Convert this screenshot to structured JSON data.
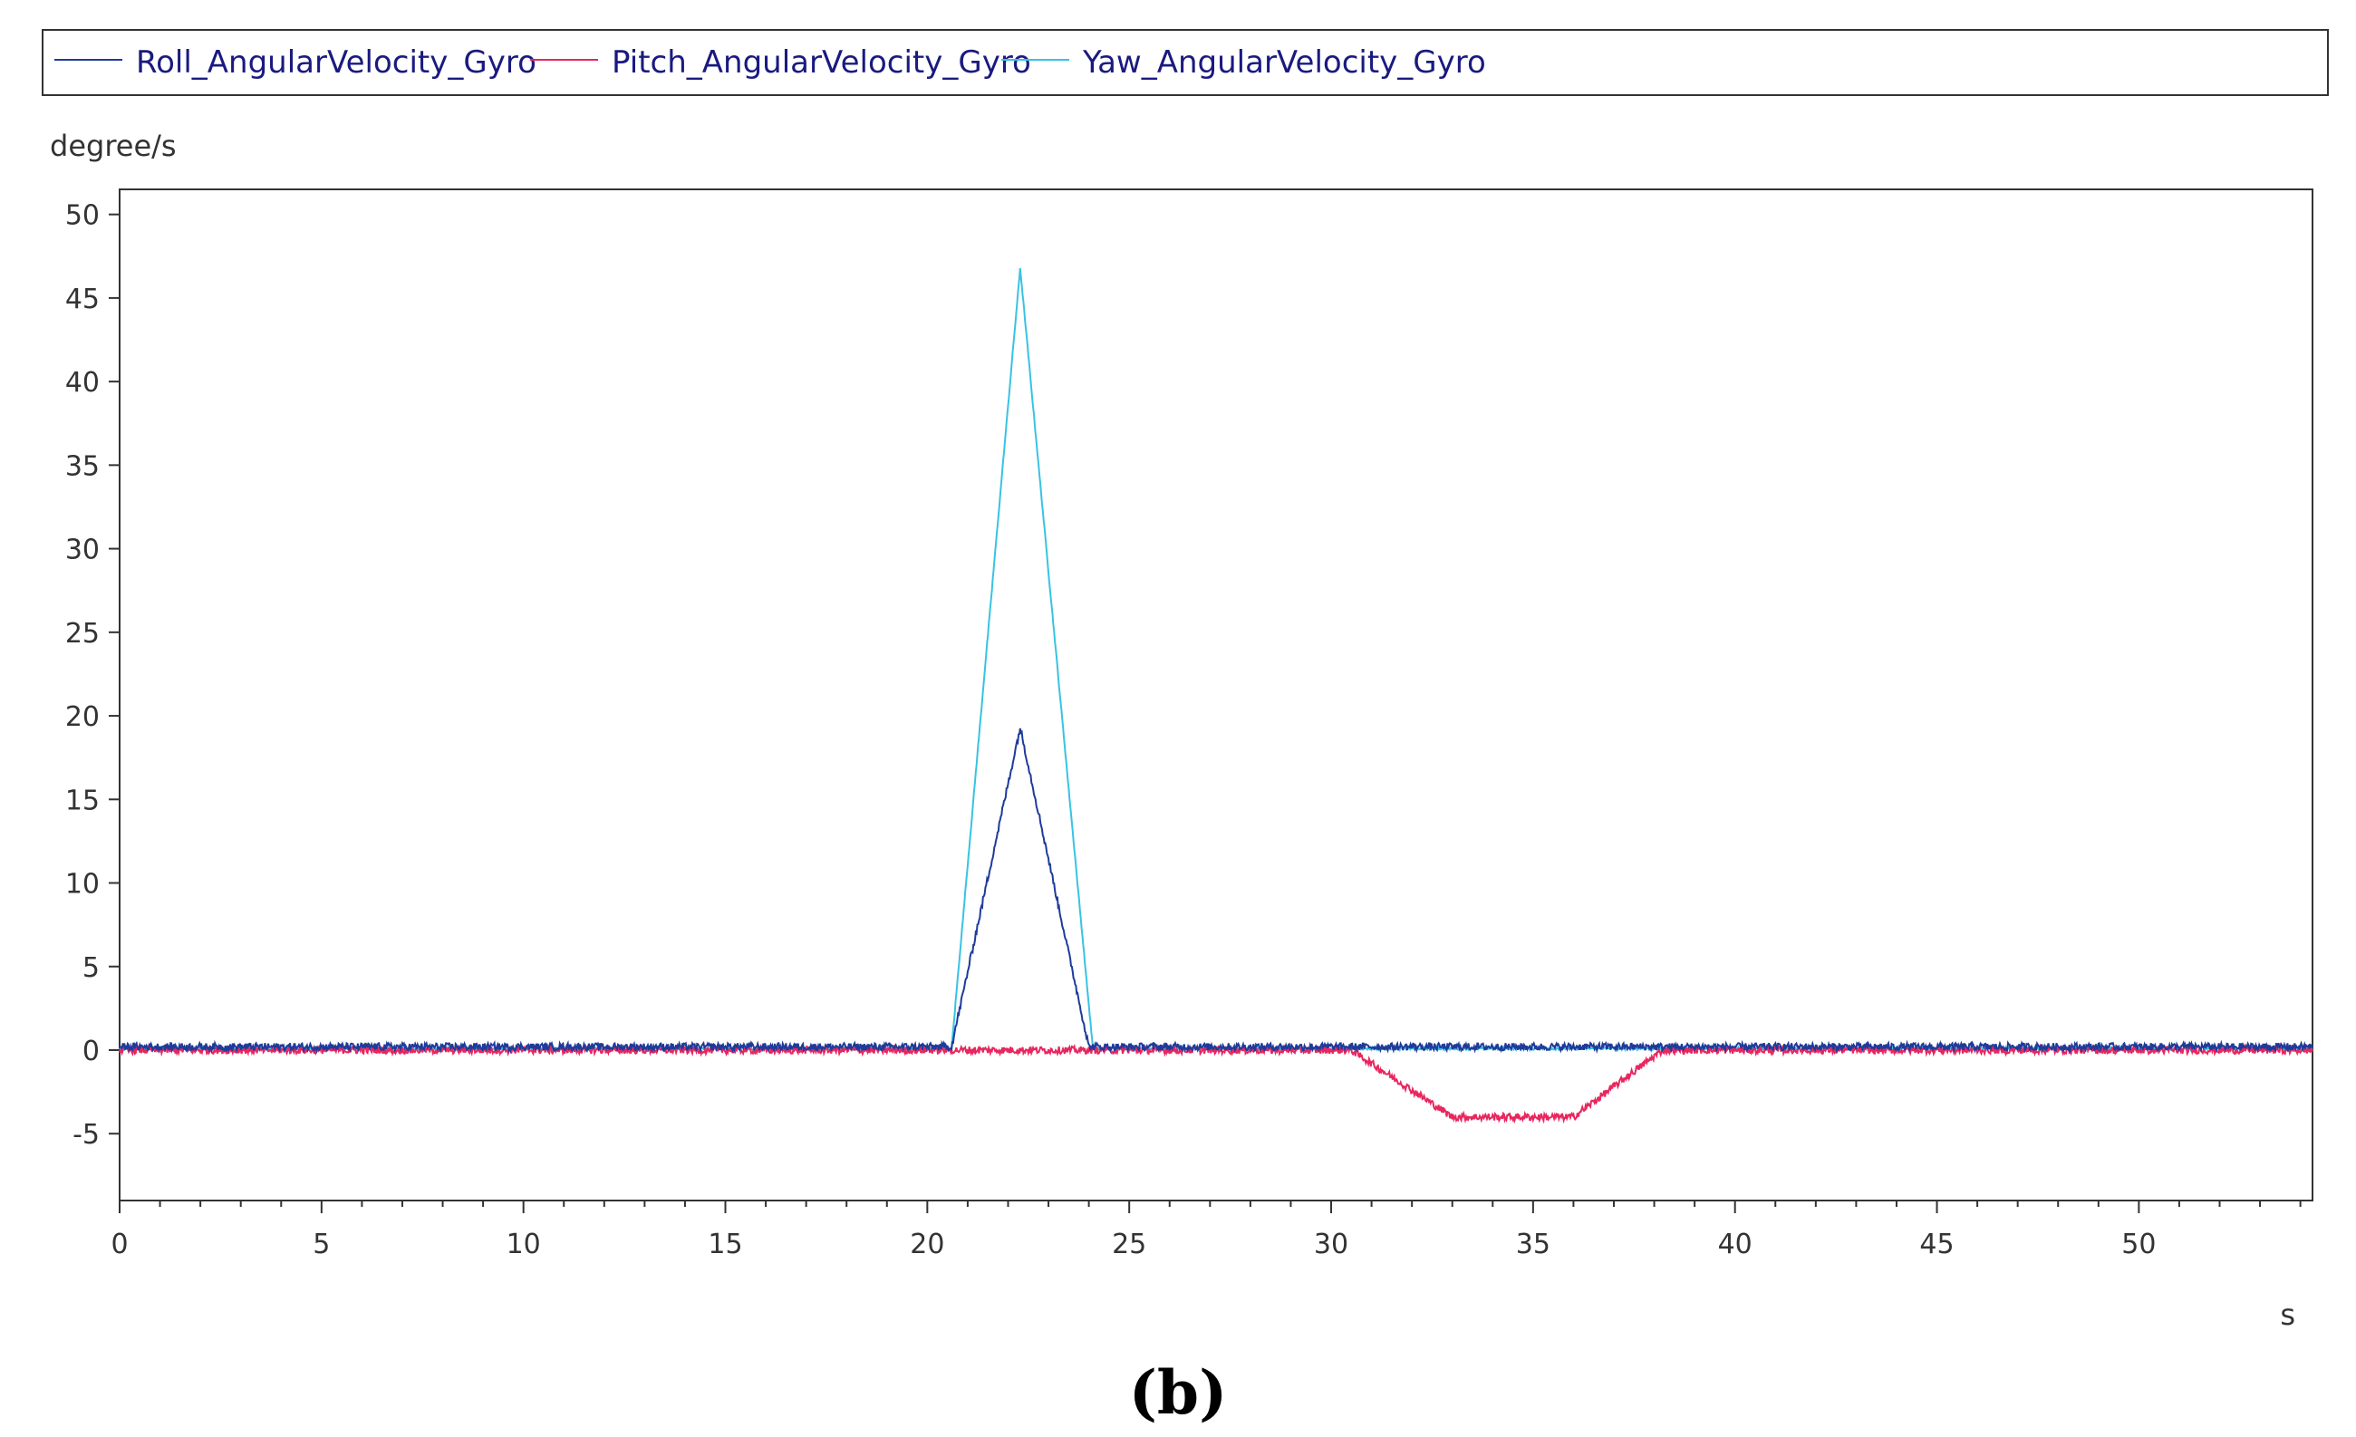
{
  "chart_data": {
    "type": "line",
    "caption": "(b)",
    "ylabel": "degree/s",
    "xlabel": "s",
    "xlim": [
      0,
      54.3
    ],
    "ylim": [
      -9,
      51.5
    ],
    "x_ticks": [
      0,
      5,
      10,
      15,
      20,
      25,
      30,
      35,
      40,
      45,
      50
    ],
    "y_ticks": [
      50,
      45,
      40,
      35,
      30,
      25,
      20,
      15,
      10,
      5,
      0,
      -5
    ],
    "grid": false,
    "legend_position": "top",
    "series": [
      {
        "name": "Roll_AngularVelocity_Gyro",
        "color": "#1f3b9a",
        "points": [
          [
            0,
            0.2
          ],
          [
            20.6,
            0.2
          ],
          [
            22.3,
            19.3
          ],
          [
            24.0,
            0.2
          ],
          [
            54.3,
            0.2
          ]
        ]
      },
      {
        "name": "Pitch_AngularVelocity_Gyro",
        "color": "#e8265f",
        "points": [
          [
            0,
            0
          ],
          [
            30.5,
            0
          ],
          [
            33.0,
            -4.0
          ],
          [
            36.0,
            -4.0
          ],
          [
            38.2,
            0
          ],
          [
            54.3,
            0
          ]
        ]
      },
      {
        "name": "Yaw_AngularVelocity_Gyro",
        "color": "#38c3e3",
        "points": [
          [
            0,
            0.1
          ],
          [
            20.6,
            0.1
          ],
          [
            22.3,
            46.8
          ],
          [
            24.1,
            0.1
          ],
          [
            54.3,
            0.1
          ]
        ]
      }
    ]
  }
}
